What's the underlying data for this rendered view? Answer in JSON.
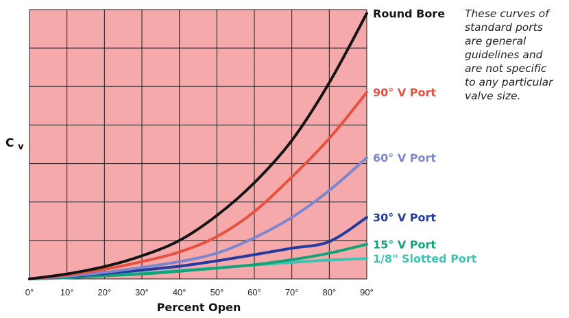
{
  "chart_data": {
    "type": "line",
    "xlabel": "Percent Open",
    "ylabel_main": "C",
    "ylabel_sub": "v",
    "x_ticks": [
      "0°",
      "10°",
      "20°",
      "30°",
      "40°",
      "50°",
      "60°",
      "70°",
      "80°",
      "90°"
    ],
    "xlim": [
      0,
      90
    ],
    "ylim": [
      0,
      7
    ],
    "grid": true,
    "plot_background": "#f5a9ab",
    "grid_color": "#1a1a1a",
    "x": [
      0,
      10,
      20,
      30,
      40,
      50,
      60,
      70,
      80,
      90
    ],
    "series": [
      {
        "name": "Round Bore",
        "color": "#141414",
        "values": [
          0,
          0.13,
          0.32,
          0.6,
          1.0,
          1.65,
          2.5,
          3.6,
          5.1,
          6.9
        ]
      },
      {
        "name": "90° V Port",
        "color": "#e8513f",
        "values": [
          0,
          0.1,
          0.25,
          0.45,
          0.7,
          1.1,
          1.75,
          2.65,
          3.65,
          4.85
        ]
      },
      {
        "name": "60° V Port",
        "color": "#7b86cc",
        "values": [
          0,
          0.07,
          0.17,
          0.3,
          0.45,
          0.67,
          1.07,
          1.6,
          2.3,
          3.15
        ]
      },
      {
        "name": "30° V Port",
        "color": "#243a9e",
        "values": [
          0,
          0.06,
          0.14,
          0.23,
          0.33,
          0.47,
          0.63,
          0.8,
          0.97,
          1.6
        ]
      },
      {
        "name": "15° V Port",
        "color": "#12a37a",
        "values": [
          0,
          0.03,
          0.08,
          0.13,
          0.2,
          0.28,
          0.37,
          0.5,
          0.67,
          0.9
        ]
      },
      {
        "name": "1/8\" Slotted Port",
        "color": "#3cc4b0",
        "values": [
          0,
          0.04,
          0.09,
          0.15,
          0.22,
          0.29,
          0.36,
          0.43,
          0.49,
          0.53
        ]
      }
    ]
  },
  "note": {
    "lines": [
      "These curves of",
      "standard ports",
      "are general",
      "guidelines and",
      "are not specific",
      "to any particular",
      "valve size."
    ]
  }
}
